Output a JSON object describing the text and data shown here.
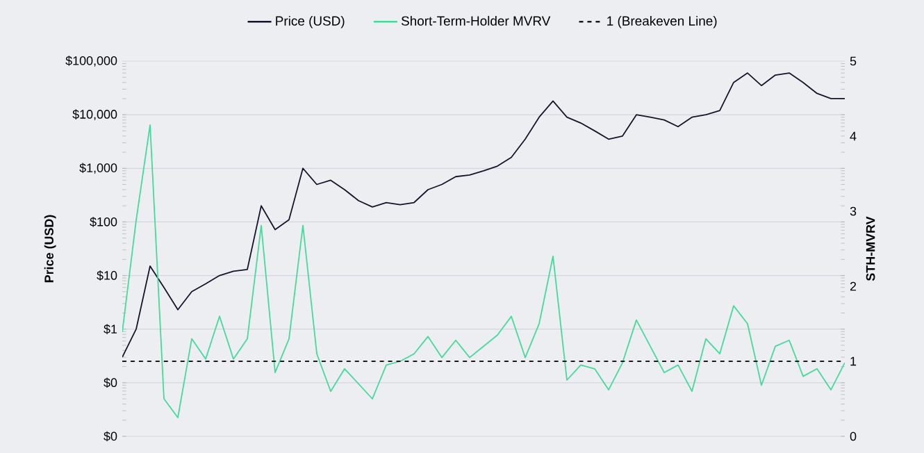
{
  "chart_data": {
    "type": "line",
    "categories": [
      null,
      null,
      null,
      null,
      null,
      null,
      null,
      null,
      null,
      null,
      null,
      null,
      null,
      null,
      null,
      null,
      null,
      null,
      null,
      null,
      null,
      null,
      null,
      null,
      null,
      null,
      null,
      null,
      null,
      null,
      null,
      null,
      null,
      null,
      null,
      null,
      null,
      null,
      null,
      null,
      null,
      null,
      null,
      null,
      null,
      null,
      null,
      null,
      null,
      null,
      null,
      null,
      null
    ],
    "series": [
      {
        "name": "Price (USD)",
        "color": "#14142b",
        "values": [
          0.3,
          1,
          15,
          6,
          2.3,
          5,
          7,
          10,
          12,
          13,
          200,
          72,
          110,
          1000,
          500,
          600,
          400,
          250,
          190,
          230,
          210,
          230,
          400,
          500,
          700,
          750,
          900,
          1100,
          1600,
          3500,
          9000,
          18000,
          9000,
          7000,
          5000,
          3500,
          4000,
          10000,
          9000,
          8000,
          6000,
          9000,
          10000,
          12000,
          40000,
          60000,
          35000,
          55000,
          60000,
          40000,
          25000,
          20000,
          20000
        ]
      },
      {
        "name": "Short-Term-Holder MVRV",
        "color": "#45d99a",
        "axis": "y2",
        "values": [
          1.39,
          2.88,
          4.15,
          0.5,
          0.25,
          1.3,
          1.03,
          1.6,
          1.03,
          1.3,
          2.81,
          0.85,
          1.3,
          2.81,
          1.1,
          0.6,
          0.9,
          0.7,
          0.5,
          0.95,
          1.0,
          1.1,
          1.33,
          1.05,
          1.28,
          1.05,
          1.2,
          1.35,
          1.6,
          1.05,
          1.5,
          2.4,
          0.75,
          0.95,
          0.9,
          0.62,
          0.98,
          1.55,
          1.2,
          0.85,
          0.95,
          0.6,
          1.3,
          1.1,
          1.74,
          1.5,
          0.68,
          1.2,
          1.28,
          0.8,
          0.9,
          0.62,
          0.98
        ]
      }
    ],
    "ylabel": "Price (USD)",
    "y2label": "STH-MVRV",
    "log": "y",
    "ylim": [
      0.01,
      100000
    ],
    "yticks": [
      {
        "value": 0.01,
        "label": "$0"
      },
      {
        "value": 0.1,
        "label": "$0"
      },
      {
        "value": 1,
        "label": "$1"
      },
      {
        "value": 10,
        "label": "$10"
      },
      {
        "value": 100,
        "label": "$100"
      },
      {
        "value": 1000,
        "label": "$1,000"
      },
      {
        "value": 10000,
        "label": "$10,000"
      },
      {
        "value": 100000,
        "label": "$100,000"
      }
    ],
    "y2lim": [
      0,
      5
    ],
    "y2ticks": [
      0,
      1,
      2,
      3,
      4,
      5
    ],
    "ref_lines": [
      {
        "axis": "y2",
        "value": 1,
        "label": "1 (Breakeven Line)",
        "color": "#1a1a1a",
        "line_style": "dashed"
      }
    ],
    "grid": "y",
    "legend": "top"
  }
}
